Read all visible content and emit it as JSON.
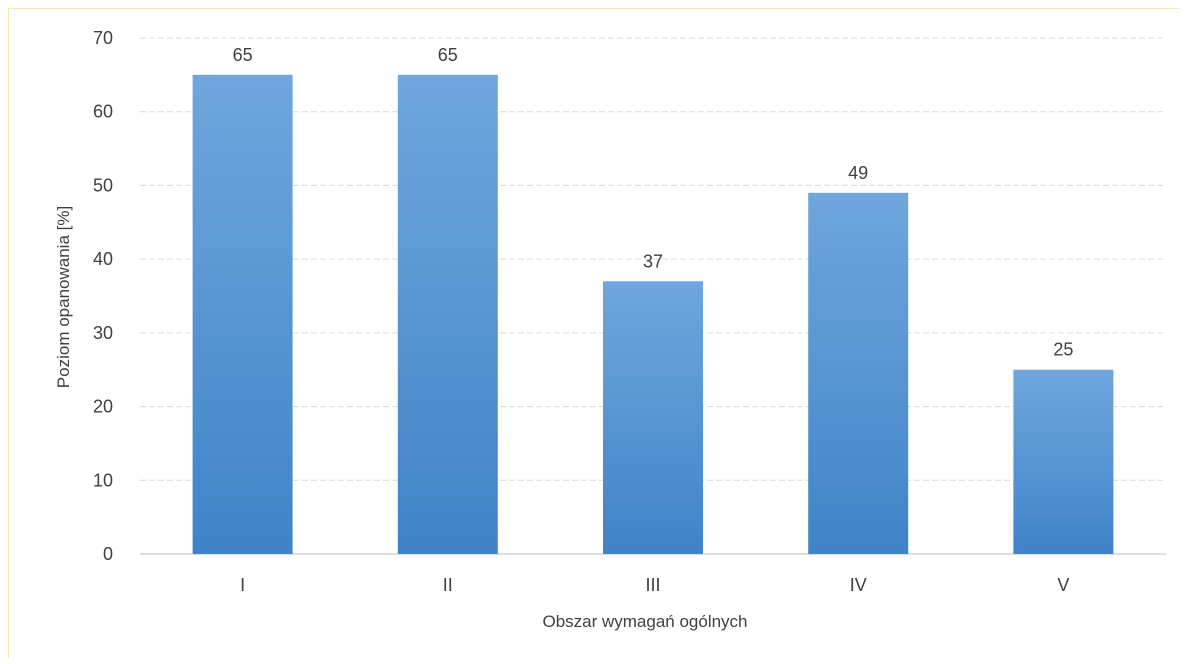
{
  "chart_data": {
    "type": "bar",
    "title": "",
    "xlabel": "Obszar wymagań ogólnych",
    "ylabel": "Poziom opanowania [%]",
    "categories": [
      "I",
      "II",
      "III",
      "IV",
      "V"
    ],
    "values": [
      65,
      65,
      37,
      49,
      25
    ],
    "data_labels": [
      "65",
      "65",
      "37",
      "49",
      "25"
    ],
    "ylim": [
      0,
      70
    ],
    "yticks": [
      0,
      10,
      20,
      30,
      40,
      50,
      60,
      70
    ],
    "grid": true,
    "legend": "none",
    "colors": {
      "bar_top": "#6fa6dd",
      "bar_bottom": "#3f84c8",
      "gridline": "#d9d9d9",
      "text": "#404040"
    }
  }
}
